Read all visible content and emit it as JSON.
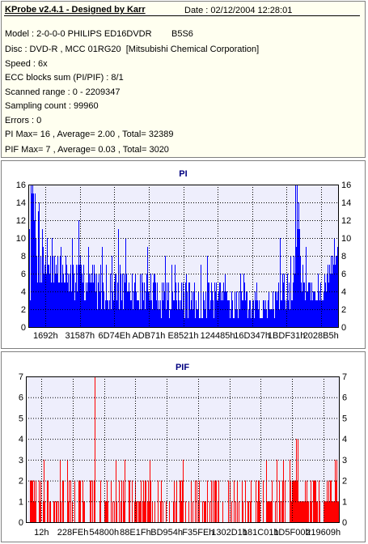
{
  "header": {
    "title": "KProbe v2.4.1 - Designed by Karr",
    "date": "Date : 02/12/2004 12:28:01"
  },
  "info_lines": [
    "Model : 2-0-0-0 PHILIPS ED16DVDR        B5S6",
    "Disc : DVD-R , MCC 01RG20  [Mitsubishi Chemical Corporation]",
    "Speed : 6x",
    "ECC blocks sum (PI/PIF) : 8/1",
    "Scanned range : 0 - 2209347",
    "Sampling count : 99960",
    "Errors : 0",
    "PI Max= 16 , Average= 2.00 , Total= 32389",
    "PIF Max= 7 , Average= 0.03 , Total= 3020"
  ],
  "colors": {
    "pi_bar": "#0000ff",
    "pif_bar": "#ff0000",
    "plot_bg": "#eeeefc",
    "grid": "#000000",
    "title": "#000080"
  },
  "chart_data": [
    {
      "type": "bar",
      "title": "PI",
      "ylim": [
        0,
        16
      ],
      "yticks": [
        0,
        2,
        4,
        6,
        8,
        10,
        12,
        14,
        16
      ],
      "xticks": [
        "1692h",
        "31587h",
        "6D74Eh",
        "ADB71h",
        "E8521h",
        "124485h",
        "16D347h",
        "1BDF31h",
        "2028B5h"
      ],
      "grid": true,
      "seed": 7,
      "profile": [
        [
          0.0,
          9,
          12
        ],
        [
          0.012,
          11,
          14
        ],
        [
          0.05,
          8,
          6
        ],
        [
          0.1,
          6,
          4
        ],
        [
          0.2,
          5,
          4
        ],
        [
          0.3,
          4,
          4
        ],
        [
          0.4,
          4,
          4
        ],
        [
          0.5,
          3,
          4
        ],
        [
          0.6,
          3,
          4
        ],
        [
          0.7,
          3,
          3
        ],
        [
          0.76,
          2,
          2
        ],
        [
          0.8,
          3,
          3
        ],
        [
          0.855,
          6,
          6
        ],
        [
          0.87,
          12,
          4
        ],
        [
          0.885,
          5,
          4
        ],
        [
          0.93,
          3,
          2
        ],
        [
          0.965,
          5,
          3
        ],
        [
          1.0,
          9,
          2
        ]
      ],
      "peaks": [
        [
          0.01,
          15
        ],
        [
          0.016,
          15
        ],
        [
          0.02,
          15
        ],
        [
          0.035,
          14
        ],
        [
          0.865,
          16
        ],
        [
          0.868,
          16
        ],
        [
          0.875,
          14
        ],
        [
          0.29,
          11
        ],
        [
          0.99,
          10
        ]
      ]
    },
    {
      "type": "bar",
      "title": "PIF",
      "ylim": [
        0,
        7
      ],
      "yticks": [
        0,
        1,
        2,
        3,
        4,
        5,
        6,
        7
      ],
      "xticks": [
        "12h",
        "228FEh",
        "54800h",
        "88E1Fh",
        "BD954h",
        "F35FEh",
        "1302D1h",
        "181C01h",
        "1D5F00h",
        "219609h"
      ],
      "grid": true,
      "seed": 23,
      "profile": [
        [
          0.0,
          0.5,
          2
        ],
        [
          0.84,
          0.5,
          2
        ],
        [
          0.855,
          2.8,
          2
        ],
        [
          0.875,
          1.5,
          1
        ],
        [
          0.95,
          0.3,
          1
        ],
        [
          0.97,
          2,
          1
        ],
        [
          1.0,
          2.5,
          1
        ]
      ],
      "peaks": [
        [
          0.22,
          7
        ],
        [
          0.056,
          3
        ],
        [
          0.865,
          4
        ],
        [
          0.87,
          4
        ],
        [
          0.99,
          3
        ],
        [
          0.995,
          3
        ]
      ]
    }
  ]
}
